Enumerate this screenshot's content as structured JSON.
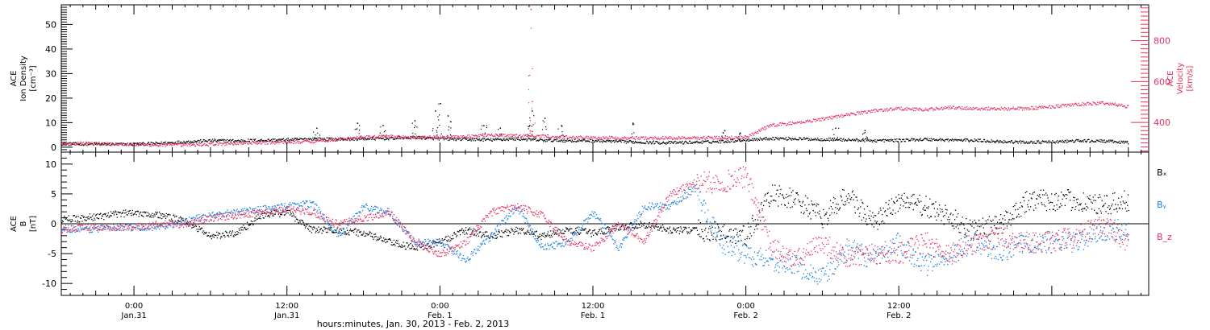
{
  "colors": {
    "black": "#000000",
    "pink": "#e8305e",
    "blue": "#1a7fe0"
  },
  "footer_label": "hours:minutes, Jan. 30, 2013 - Feb. 2, 2013",
  "chart_data": [
    {
      "type": "scatter",
      "panel": "top",
      "left_axis": {
        "label_lines": [
          "ACE",
          "Ion Density",
          "[cm⁻³]"
        ],
        "ylim": [
          -2,
          58
        ],
        "ticks": [
          0,
          10,
          20,
          30,
          40,
          50
        ]
      },
      "right_axis": {
        "label_lines": [
          "ACE",
          "Velocity",
          "[km/s]"
        ],
        "ylim": [
          255,
          975
        ],
        "ticks": [
          400,
          600,
          800
        ]
      },
      "x_range_hours": [
        -5.7,
        79.6
      ],
      "series": [
        {
          "axis": "left",
          "color": "black",
          "points": [
            [
              -6,
              1.6
            ],
            [
              -4,
              1.5
            ],
            [
              -2,
              1.4
            ],
            [
              0,
              1.4
            ],
            [
              2,
              1.8
            ],
            [
              4,
              2.4
            ],
            [
              6,
              2.9
            ],
            [
              8,
              2.8
            ],
            [
              10,
              3.0
            ],
            [
              12,
              3.2
            ],
            [
              14,
              3.6
            ],
            [
              16,
              3.4
            ],
            [
              18,
              3.6
            ],
            [
              20,
              3.8
            ],
            [
              22,
              4.2
            ],
            [
              24,
              3.6
            ],
            [
              26,
              3.4
            ],
            [
              28,
              3.2
            ],
            [
              30,
              3.6
            ],
            [
              32,
              3.0
            ],
            [
              34,
              2.9
            ],
            [
              36,
              2.8
            ],
            [
              38,
              2.5
            ],
            [
              40,
              2.2
            ],
            [
              42,
              2.0
            ],
            [
              44,
              2.2
            ],
            [
              46,
              2.5
            ],
            [
              48,
              3.2
            ],
            [
              50,
              3.8
            ],
            [
              52,
              3.6
            ],
            [
              54,
              3.4
            ],
            [
              56,
              3.2
            ],
            [
              58,
              2.9
            ],
            [
              60,
              3.0
            ],
            [
              62,
              3.4
            ],
            [
              64,
              3.1
            ],
            [
              66,
              3.0
            ],
            [
              68,
              2.5
            ],
            [
              70,
              2.2
            ],
            [
              72,
              2.3
            ],
            [
              74,
              2.8
            ],
            [
              76,
              2.7
            ],
            [
              78,
              2.0
            ]
          ],
          "spikes": [
            [
              14.3,
              8
            ],
            [
              17.5,
              10
            ],
            [
              19.5,
              9
            ],
            [
              22.0,
              11
            ],
            [
              23.6,
              15
            ],
            [
              24.0,
              18
            ],
            [
              24.6,
              13
            ],
            [
              27.4,
              9
            ],
            [
              28.7,
              8
            ],
            [
              31.0,
              9
            ],
            [
              31.2,
              15
            ],
            [
              32.2,
              12
            ],
            [
              33.5,
              9
            ],
            [
              39.1,
              10
            ],
            [
              46.3,
              7
            ],
            [
              47.5,
              6
            ],
            [
              55.0,
              8
            ],
            [
              57.3,
              7
            ]
          ]
        },
        {
          "axis": "right",
          "color": "pink",
          "points": [
            [
              -6,
              300
            ],
            [
              -4,
              300
            ],
            [
              -2,
              298
            ],
            [
              0,
              295
            ],
            [
              2,
              292
            ],
            [
              4,
              292
            ],
            [
              6,
              296
            ],
            [
              8,
              300
            ],
            [
              10,
              303
            ],
            [
              12,
              306
            ],
            [
              14,
              310
            ],
            [
              16,
              320
            ],
            [
              18,
              330
            ],
            [
              20,
              334
            ],
            [
              22,
              328
            ],
            [
              24,
              330
            ],
            [
              26,
              334
            ],
            [
              28,
              340
            ],
            [
              30,
              336
            ],
            [
              32,
              334
            ],
            [
              34,
              330
            ],
            [
              36,
              328
            ],
            [
              38,
              327
            ],
            [
              40,
              326
            ],
            [
              42,
              326
            ],
            [
              44,
              327
            ],
            [
              46,
              328
            ],
            [
              48,
              330
            ],
            [
              50,
              390
            ],
            [
              52,
              400
            ],
            [
              54,
              420
            ],
            [
              56,
              440
            ],
            [
              58,
              460
            ],
            [
              60,
              470
            ],
            [
              62,
              465
            ],
            [
              64,
              475
            ],
            [
              66,
              470
            ],
            [
              68,
              470
            ],
            [
              70,
              470
            ],
            [
              72,
              480
            ],
            [
              74,
              490
            ],
            [
              76,
              498
            ],
            [
              78,
              480
            ]
          ],
          "spikes": [
            [
              31.1,
              955
            ],
            [
              31.2,
              505
            ]
          ]
        }
      ]
    },
    {
      "type": "scatter",
      "panel": "bottom",
      "left_axis": {
        "label_lines": [
          "ACE",
          "B",
          "[nT]"
        ],
        "ylim": [
          -12,
          12
        ],
        "ticks": [
          -10,
          -5,
          0,
          5,
          10
        ]
      },
      "x_range_hours": [
        -5.7,
        79.6
      ],
      "legend": [
        "Bₓ",
        "Bᵧ",
        "B_z"
      ],
      "series": [
        {
          "name": "Bₓ",
          "color": "black",
          "points": [
            [
              -6,
              0.8
            ],
            [
              -4,
              1.0
            ],
            [
              -2,
              1.5
            ],
            [
              0,
              2.0
            ],
            [
              2,
              1.5
            ],
            [
              4,
              0.5
            ],
            [
              6,
              -2.0
            ],
            [
              8,
              -1.5
            ],
            [
              10,
              1.5
            ],
            [
              12,
              2.0
            ],
            [
              14,
              -1.0
            ],
            [
              16,
              -1.0
            ],
            [
              18,
              -1.5
            ],
            [
              20,
              -3.0
            ],
            [
              22,
              -4.0
            ],
            [
              24,
              -3.0
            ],
            [
              26,
              -1.0
            ],
            [
              28,
              -2.0
            ],
            [
              30,
              -1.0
            ],
            [
              32,
              -2.0
            ],
            [
              34,
              -1.0
            ],
            [
              36,
              -1.5
            ],
            [
              38,
              -0.5
            ],
            [
              40,
              0.0
            ],
            [
              42,
              -1.0
            ],
            [
              44,
              -1.0
            ],
            [
              46,
              -1.5
            ],
            [
              48,
              -2.0
            ],
            [
              50,
              5.0
            ],
            [
              52,
              4.0
            ],
            [
              54,
              1.0
            ],
            [
              56,
              5.0
            ],
            [
              58,
              0.0
            ],
            [
              60,
              4.0
            ],
            [
              62,
              3.0
            ],
            [
              64,
              1.0
            ],
            [
              66,
              -1.0
            ],
            [
              68,
              0.0
            ],
            [
              70,
              4.0
            ],
            [
              72,
              4.0
            ],
            [
              74,
              4.0
            ],
            [
              76,
              3.0
            ],
            [
              78,
              4.0
            ]
          ]
        },
        {
          "name": "Bᵧ",
          "color": "blue",
          "points": [
            [
              -6,
              -0.5
            ],
            [
              -4,
              -1.0
            ],
            [
              -2,
              -0.5
            ],
            [
              0,
              -0.5
            ],
            [
              2,
              -0.5
            ],
            [
              4,
              0.5
            ],
            [
              6,
              1.5
            ],
            [
              8,
              2.0
            ],
            [
              10,
              2.5
            ],
            [
              12,
              3.0
            ],
            [
              14,
              3.5
            ],
            [
              16,
              -2.0
            ],
            [
              18,
              3.0
            ],
            [
              20,
              2.0
            ],
            [
              22,
              -3.0
            ],
            [
              24,
              -3.0
            ],
            [
              26,
              -6.0
            ],
            [
              28,
              -2.0
            ],
            [
              30,
              3.0
            ],
            [
              32,
              -4.0
            ],
            [
              34,
              -3.0
            ],
            [
              36,
              2.0
            ],
            [
              38,
              -4.0
            ],
            [
              40,
              3.0
            ],
            [
              42,
              3.0
            ],
            [
              44,
              6.0
            ],
            [
              46,
              -3.0
            ],
            [
              48,
              -5.0
            ],
            [
              50,
              -6.0
            ],
            [
              52,
              -7.0
            ],
            [
              54,
              -9.0
            ],
            [
              56,
              -4.0
            ],
            [
              58,
              -6.0
            ],
            [
              60,
              -3.0
            ],
            [
              62,
              -7.0
            ],
            [
              64,
              -5.0
            ],
            [
              66,
              -3.0
            ],
            [
              68,
              -5.0
            ],
            [
              70,
              -3.0
            ],
            [
              72,
              -3.0
            ],
            [
              74,
              -3.0
            ],
            [
              76,
              -1.0
            ],
            [
              78,
              -1.0
            ]
          ]
        },
        {
          "name": "B_z",
          "color": "pink",
          "points": [
            [
              -6,
              -1.0
            ],
            [
              -4,
              -0.5
            ],
            [
              -2,
              -0.5
            ],
            [
              0,
              -0.5
            ],
            [
              2,
              0.0
            ],
            [
              4,
              0.0
            ],
            [
              6,
              1.0
            ],
            [
              8,
              1.5
            ],
            [
              10,
              2.0
            ],
            [
              12,
              2.5
            ],
            [
              14,
              2.0
            ],
            [
              16,
              0.0
            ],
            [
              18,
              1.0
            ],
            [
              20,
              2.0
            ],
            [
              22,
              -3.0
            ],
            [
              24,
              -5.0
            ],
            [
              26,
              -3.0
            ],
            [
              28,
              2.0
            ],
            [
              30,
              3.0
            ],
            [
              32,
              1.5
            ],
            [
              34,
              -3.0
            ],
            [
              36,
              -4.0
            ],
            [
              38,
              0.0
            ],
            [
              40,
              -3.0
            ],
            [
              42,
              5.0
            ],
            [
              44,
              7.0
            ],
            [
              46,
              7.0
            ],
            [
              48,
              8.0
            ],
            [
              50,
              -4.0
            ],
            [
              52,
              -6.0
            ],
            [
              54,
              -3.0
            ],
            [
              56,
              -6.0
            ],
            [
              58,
              -5.0
            ],
            [
              60,
              -5.0
            ],
            [
              62,
              -3.0
            ],
            [
              64,
              -5.0
            ],
            [
              66,
              -3.0
            ],
            [
              68,
              -2.0
            ],
            [
              70,
              -3.0
            ],
            [
              72,
              -3.0
            ],
            [
              74,
              -2.0
            ],
            [
              76,
              0.0
            ],
            [
              78,
              -3.0
            ]
          ]
        }
      ]
    }
  ],
  "x_axis": {
    "ticks": [
      {
        "hour": 0,
        "time": "0:00",
        "date": "Jan.31"
      },
      {
        "hour": 12,
        "time": "12:00",
        "date": "Jan.31"
      },
      {
        "hour": 24,
        "time": "0:00",
        "date": "Feb. 1"
      },
      {
        "hour": 36,
        "time": "12:00",
        "date": "Feb. 1"
      },
      {
        "hour": 48,
        "time": "0:00",
        "date": "Feb. 2"
      },
      {
        "hour": 60,
        "time": "12:00",
        "date": "Feb. 2"
      }
    ]
  }
}
